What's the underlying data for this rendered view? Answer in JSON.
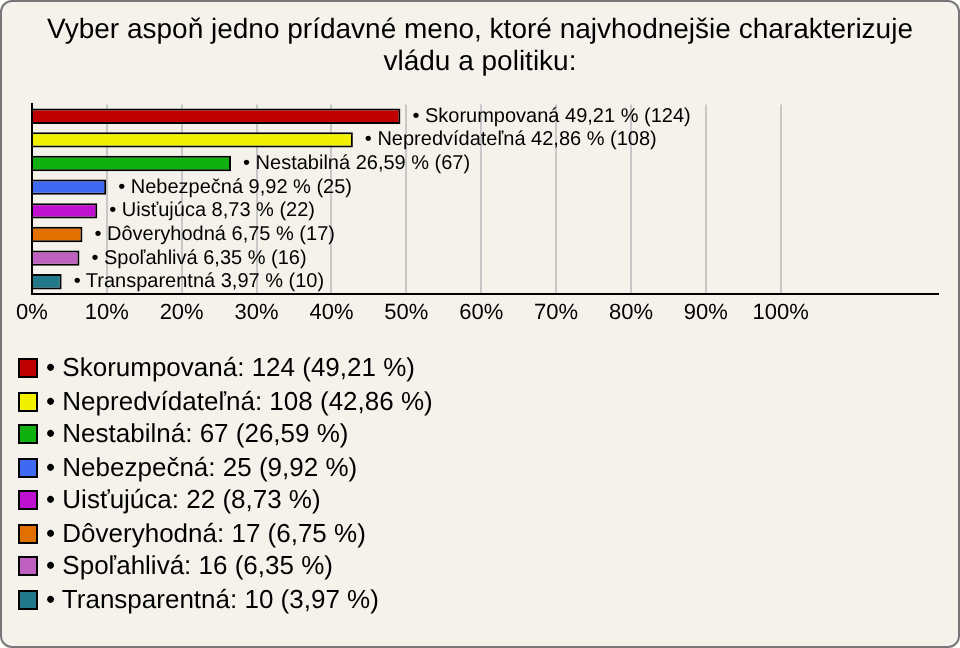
{
  "chart_data": {
    "type": "bar",
    "orientation": "horizontal",
    "title": "Vyber aspoň jedno prídavné meno, ktoré najvhodnejšie charakterizuje vládu a politiku:",
    "categories": [
      null,
      null,
      null,
      null,
      null,
      null,
      null,
      null
    ],
    "values": [
      49.21,
      42.86,
      26.59,
      9.92,
      8.73,
      6.75,
      6.35,
      3.97
    ],
    "colors": [
      "#c00000",
      "#f0f000",
      "#10b010",
      "#4068f0",
      "#c010d0",
      "#e07000",
      "#c060c0",
      "#207888"
    ],
    "value_labels": [
      "• Skorumpovaná 49,21 % (124)",
      "• Nepredvídateľná 42,86 % (108)",
      "• Nestabilná 26,59 % (67)",
      "• Nebezpečná 9,92 % (25)",
      "• Uisťujúca 8,73 % (22)",
      "• Dôveryhodná 6,75 % (17)",
      "• Spoľahlivá 6,35 % (16)",
      "• Transparentná 3,97 % (10)"
    ],
    "xlim": [
      0,
      121
    ],
    "xticks": [
      {
        "value": 0,
        "label": "0%"
      },
      {
        "value": 10,
        "label": "10%"
      },
      {
        "value": 20,
        "label": "20%"
      },
      {
        "value": 30,
        "label": "30%"
      },
      {
        "value": 40,
        "label": "40%"
      },
      {
        "value": 50,
        "label": "50%"
      },
      {
        "value": 60,
        "label": "60%"
      },
      {
        "value": 70,
        "label": "70%"
      },
      {
        "value": 80,
        "label": "80%"
      },
      {
        "value": 90,
        "label": "90%"
      },
      {
        "value": 100,
        "label": "100%"
      }
    ],
    "grid": "x",
    "annotations": [
      "• Skorumpovaná: 124 (49,21 %)",
      "• Nepredvídateľná: 108 (42,86 %)",
      "• Nestabilná: 67 (26,59 %)",
      "• Nebezpečná: 25 (9,92 %)",
      "• Uisťujúca: 22 (8,73 %)",
      "• Dôveryhodná: 17 (6,75 %)",
      "• Spoľahlivá: 16 (6,35 %)",
      "• Transparentná: 10 (3,97 %)"
    ]
  }
}
